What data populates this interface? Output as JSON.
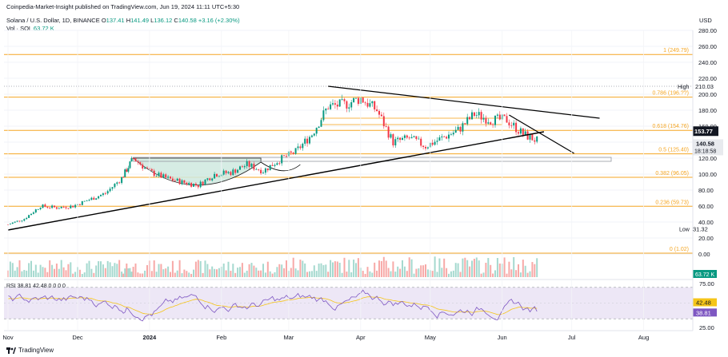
{
  "header": {
    "publish_line": "Coinpedia-Market-Insight published on TradingView.com, Jun 19, 2024 11:11 UTC+5:30",
    "symbol": "Solana / U.S. Dollar, 1D, BINANCE",
    "o_label": "O",
    "o_value": "137.41",
    "h_label": "H",
    "h_value": "141.49",
    "l_label": "L",
    "l_value": "136.12",
    "c_label": "C",
    "c_value": "140.58",
    "change": "+3.16 (+2.30%)",
    "vol_label": "Vol · SOL",
    "vol_value": "63.72 K"
  },
  "currency": "USD",
  "footer": {
    "brand": "TradingView"
  },
  "colors": {
    "up": "#089981",
    "down": "#f23645",
    "fib": "#f5a623",
    "rsi_line": "#7e57c2",
    "rsi_ma": "#f5c518",
    "rsi_band": "#ede7f6",
    "trend": "#000000",
    "cup": "#cfe9e0",
    "price_tag": "#131722"
  },
  "chart_data": [
    {
      "type": "candlestick",
      "title": "Solana / U.S. Dollar, 1D, BINANCE",
      "ylim": [
        0,
        280
      ],
      "y_ticks": [
        "280.00",
        "260.00",
        "240.00",
        "220.00",
        "200.00",
        "180.00",
        "160.00",
        "140.00",
        "120.00",
        "100.00",
        "80.00",
        "60.00",
        "40.00",
        "20.00",
        "0.00"
      ],
      "x_ticks": [
        "Nov",
        "Dec",
        "2024",
        "Feb",
        "Mar",
        "Apr",
        "May",
        "Jun",
        "Jul",
        "Aug"
      ],
      "fib_levels": [
        {
          "label": "1 (249.79)",
          "value": 249.79
        },
        {
          "label": "0.786 (196.??)",
          "value": 196.4
        },
        {
          "label": "0.618 (154.76)",
          "value": 154.76
        },
        {
          "label": "0.5 (125.40)",
          "value": 125.4
        },
        {
          "label": "0.382 (96.05)",
          "value": 96.05
        },
        {
          "label": "0.236 (59.73)",
          "value": 59.73
        },
        {
          "label": "0 (1.02)",
          "value": 1.02
        }
      ],
      "high": {
        "label": "High",
        "value": "210.03"
      },
      "low": {
        "label": "Low",
        "value": "31.32"
      },
      "last_price": {
        "value": "140.58",
        "countdown": "18:18:58"
      },
      "marker_price": "153.77",
      "close_series": [
        {
          "x": "2023-11-01",
          "y": 37
        },
        {
          "x": "2023-11-08",
          "y": 44
        },
        {
          "x": "2023-11-15",
          "y": 60
        },
        {
          "x": "2023-11-22",
          "y": 58
        },
        {
          "x": "2023-11-29",
          "y": 60
        },
        {
          "x": "2023-12-06",
          "y": 68
        },
        {
          "x": "2023-12-13",
          "y": 76
        },
        {
          "x": "2023-12-20",
          "y": 95
        },
        {
          "x": "2023-12-25",
          "y": 120
        },
        {
          "x": "2024-01-01",
          "y": 103
        },
        {
          "x": "2024-01-08",
          "y": 95
        },
        {
          "x": "2024-01-15",
          "y": 90
        },
        {
          "x": "2024-01-22",
          "y": 86
        },
        {
          "x": "2024-01-29",
          "y": 100
        },
        {
          "x": "2024-02-05",
          "y": 102
        },
        {
          "x": "2024-02-12",
          "y": 112
        },
        {
          "x": "2024-02-19",
          "y": 104
        },
        {
          "x": "2024-02-26",
          "y": 118
        },
        {
          "x": "2024-03-04",
          "y": 128
        },
        {
          "x": "2024-03-11",
          "y": 150
        },
        {
          "x": "2024-03-18",
          "y": 185
        },
        {
          "x": "2024-03-25",
          "y": 187
        },
        {
          "x": "2024-04-01",
          "y": 195
        },
        {
          "x": "2024-04-08",
          "y": 180
        },
        {
          "x": "2024-04-15",
          "y": 140
        },
        {
          "x": "2024-04-22",
          "y": 145
        },
        {
          "x": "2024-04-29",
          "y": 135
        },
        {
          "x": "2024-05-06",
          "y": 145
        },
        {
          "x": "2024-05-13",
          "y": 155
        },
        {
          "x": "2024-05-20",
          "y": 175
        },
        {
          "x": "2024-05-27",
          "y": 168
        },
        {
          "x": "2024-06-03",
          "y": 168
        },
        {
          "x": "2024-06-10",
          "y": 150
        },
        {
          "x": "2024-06-17",
          "y": 140.58
        }
      ]
    },
    {
      "type": "bar",
      "title": "Vol · SOL",
      "last_value": "63.72 K"
    },
    {
      "type": "line",
      "title": "RSI",
      "legend": "RSI  38.81  42.48  0  0  0  0",
      "y_ticks": [
        "75.00",
        "25.00"
      ],
      "band": [
        30,
        70
      ],
      "last_rsi": "38.81",
      "last_ma": "42.48"
    }
  ]
}
